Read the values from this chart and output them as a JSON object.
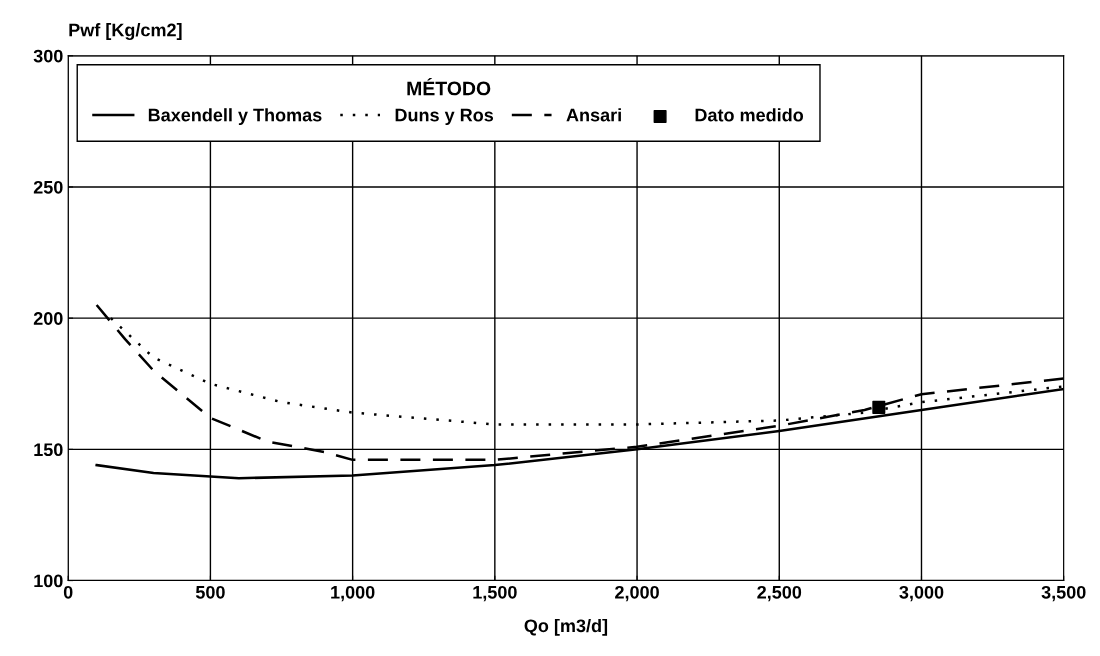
{
  "chart_data": {
    "type": "line",
    "xlabel": "Qo [m3/d]",
    "ylabel": "Pwf [Kg/cm2]",
    "legend_title": "MÉTODO",
    "xlim": [
      0,
      3500
    ],
    "ylim": [
      100,
      300
    ],
    "xticks": [
      0,
      {
        "value": 500,
        "label": "500"
      },
      {
        "value": 1000,
        "label": "1,000"
      },
      {
        "value": 1500,
        "label": "1,500"
      },
      {
        "value": 2000,
        "label": "2,000"
      },
      {
        "value": 2500,
        "label": "2,500"
      },
      {
        "value": 3000,
        "label": "3,000"
      },
      {
        "value": 3500,
        "label": "3,500"
      }
    ],
    "yticks": [
      100,
      150,
      200,
      250,
      300
    ],
    "grid": true,
    "legend": "top left",
    "series": [
      {
        "name": "Baxendell y Thomas",
        "color": "#000000",
        "line_style": "solid",
        "x": [
          100,
          300,
          600,
          1000,
          1500,
          2000,
          2500,
          3000,
          3500
        ],
        "values": [
          144,
          141,
          139,
          140,
          144,
          150,
          157,
          165,
          173
        ]
      },
      {
        "name": "Duns y Ros",
        "color": "#000000",
        "line_style": "dotted",
        "x": [
          150,
          300,
          500,
          750,
          1000,
          1500,
          2000,
          2500,
          2800,
          3000,
          3500
        ],
        "values": [
          200,
          185,
          175,
          168,
          164,
          159.5,
          159.5,
          161,
          164,
          168,
          174
        ]
      },
      {
        "name": "Ansari",
        "color": "#000000",
        "line_style": "dashed",
        "x": [
          100,
          200,
          300,
          500,
          700,
          900,
          1000,
          1500,
          2000,
          2500,
          2800,
          3000,
          3500
        ],
        "values": [
          205,
          192,
          180,
          162,
          153,
          149,
          146,
          146,
          151,
          159,
          165,
          171,
          177
        ]
      },
      {
        "name": "Dato medido",
        "color": "#000000",
        "type": "scatter",
        "marker": "square",
        "x": [
          2850
        ],
        "values": [
          166
        ]
      }
    ]
  }
}
